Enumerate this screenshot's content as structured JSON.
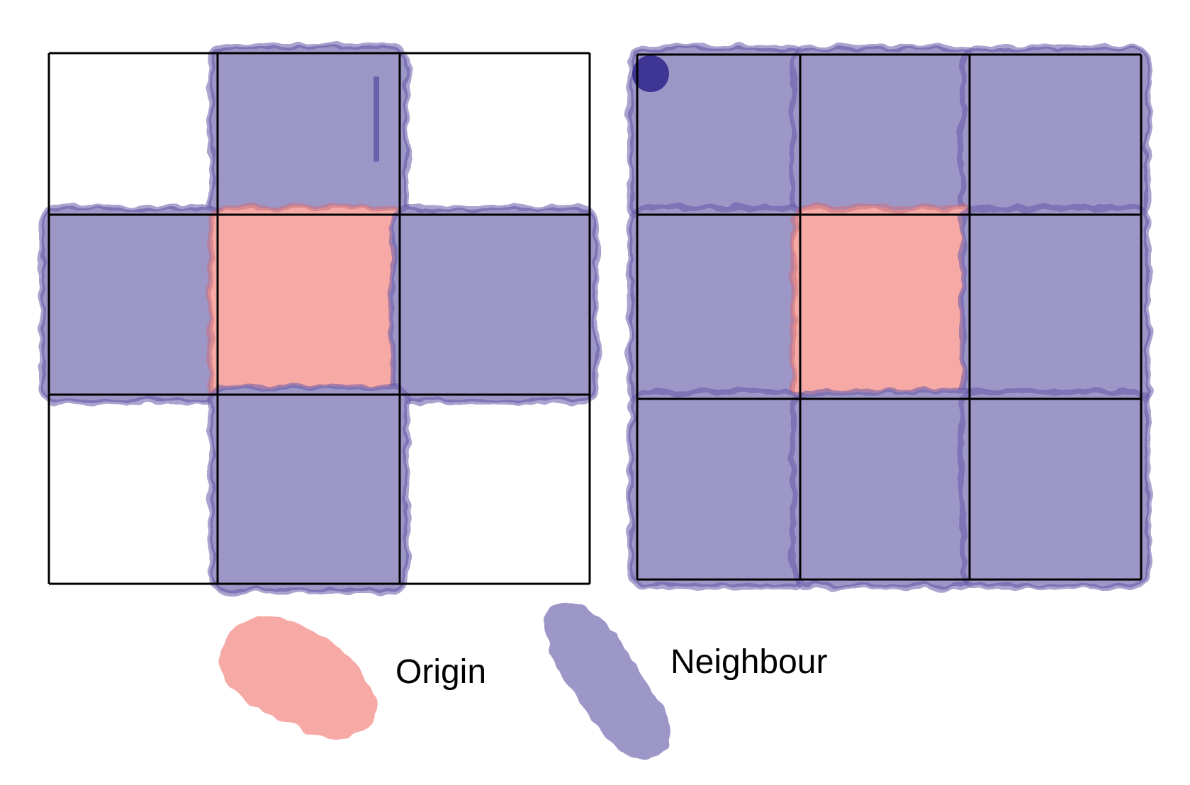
{
  "colors": {
    "origin": "#f7aaa5",
    "origin_edge": "#c8707e",
    "neighbour": "#9d97c8",
    "neighbour_edge": "#6458a8",
    "neighbour_dark": "#3f3594",
    "grid": "#000000"
  },
  "diagrams": [
    {
      "name": "von-neumann-neighbourhood",
      "cells": [
        [
          "empty",
          "neighbour",
          "empty"
        ],
        [
          "neighbour",
          "origin",
          "neighbour"
        ],
        [
          "empty",
          "neighbour",
          "empty"
        ]
      ]
    },
    {
      "name": "moore-neighbourhood",
      "cells": [
        [
          "neighbour",
          "neighbour",
          "neighbour"
        ],
        [
          "neighbour",
          "origin",
          "neighbour"
        ],
        [
          "neighbour",
          "neighbour",
          "neighbour"
        ]
      ]
    }
  ],
  "legend": {
    "origin_label": "Origin",
    "neighbour_label": "Neighbour"
  }
}
